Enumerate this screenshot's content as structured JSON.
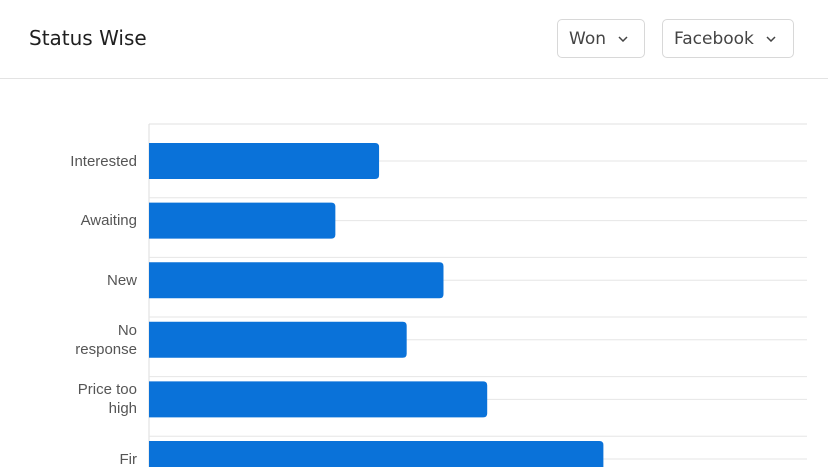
{
  "header": {
    "title": "Status Wise",
    "filters": [
      "Won",
      "Facebook"
    ]
  },
  "chart_data": {
    "type": "bar",
    "orientation": "horizontal",
    "categories": [
      "Interested",
      "Awaiting",
      "New",
      "No response",
      "Price too high",
      "Fir"
    ],
    "values": [
      20,
      16.2,
      25.6,
      22.4,
      29.4,
      39.5
    ],
    "color": "#0a72d9",
    "xlim": [
      0,
      57.2
    ],
    "grid": true
  }
}
